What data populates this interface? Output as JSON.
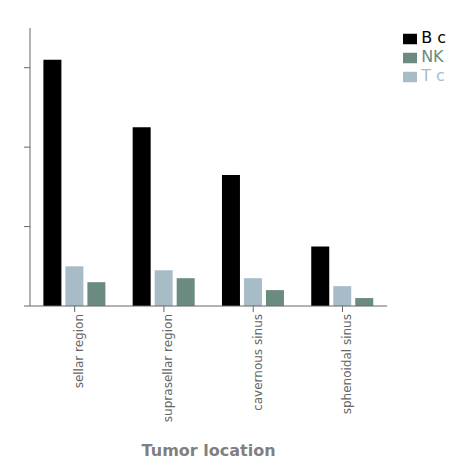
{
  "chart_data": {
    "type": "bar",
    "xlabel": "Tumor location",
    "categories": [
      "sellar region",
      "suprasellar region",
      "cavernous sinus",
      "sphenoidal sinus"
    ],
    "series": [
      {
        "name": "B c",
        "color": "#000000",
        "values": [
          62,
          45,
          33,
          15
        ]
      },
      {
        "name": "T c",
        "color": "#a8bcc8",
        "values": [
          10,
          9,
          7,
          5
        ]
      },
      {
        "name": "NK",
        "color": "#6b8a80",
        "values": [
          6,
          7,
          4,
          2
        ]
      }
    ],
    "ylim": [
      0,
      70
    ],
    "yticks": [
      0,
      20,
      40,
      60
    ],
    "grid": false,
    "legend": "upper right",
    "tick_labels": "x"
  }
}
